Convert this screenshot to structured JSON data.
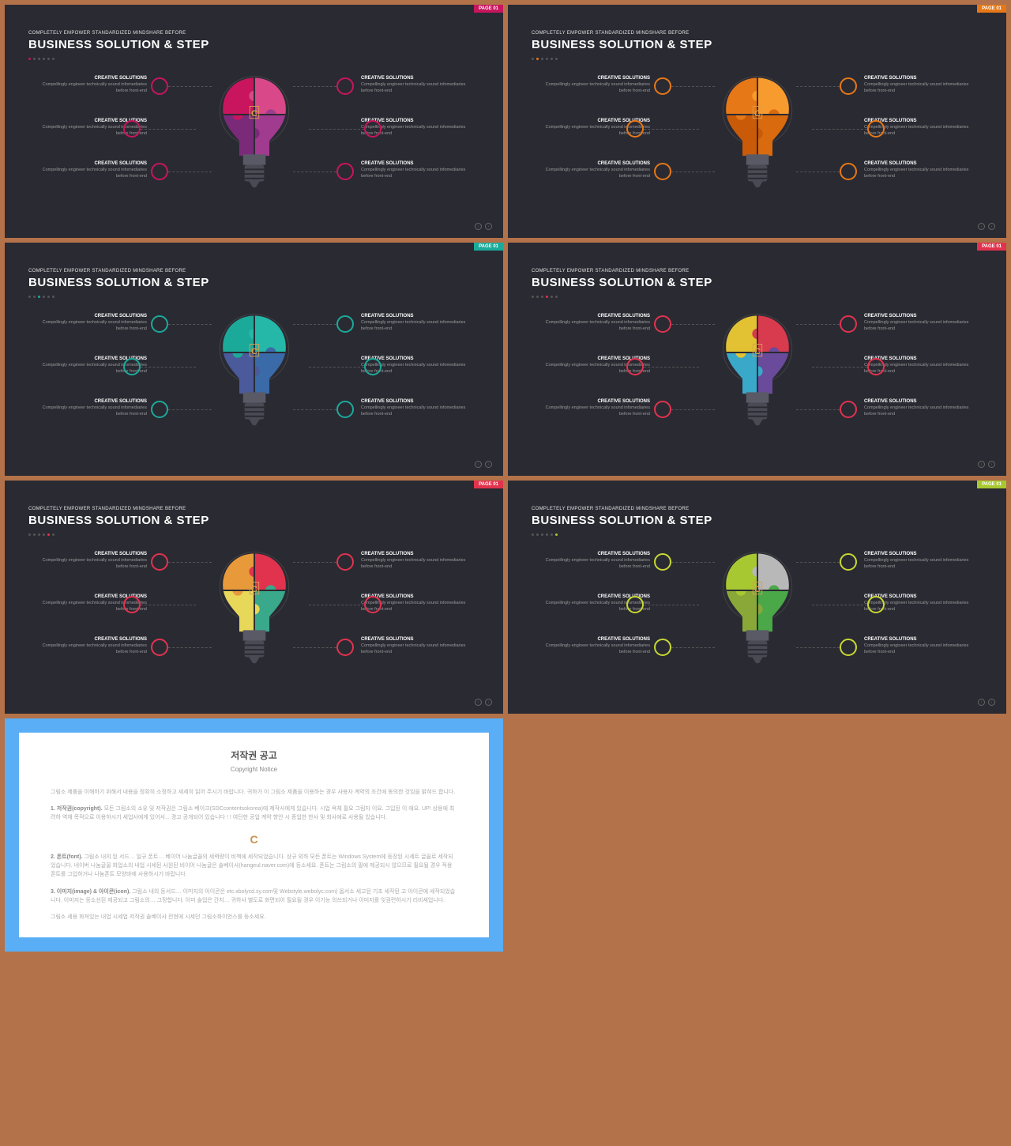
{
  "page_label": "PAGE 01",
  "subtitle": "COMPLETELY EMPOWER STANDARDIZED MINDSHARE BEFORE",
  "title": "BUSINESS SOLUTION & STEP",
  "callout_title": "CREATIVE SOLUTIONS",
  "callout_body": "Compellingly engineer technically sound infomediaries before front-end",
  "slides": [
    {
      "tag_color": "#c8155e",
      "accent": "#c8155e",
      "dots": [
        "#c8155e",
        "#555",
        "#555",
        "#555",
        "#555",
        "#555"
      ],
      "puzzle": [
        "#c8155e",
        "#d94889",
        "#a03b8f",
        "#7b2a7a"
      ],
      "circle_border": "#c8155e"
    },
    {
      "tag_color": "#e67817",
      "accent": "#e67817",
      "dots": [
        "#555",
        "#e67817",
        "#555",
        "#555",
        "#555",
        "#555"
      ],
      "puzzle": [
        "#e67817",
        "#f79b2e",
        "#d96a0e",
        "#c85a08"
      ],
      "circle_border": "#e67817"
    },
    {
      "tag_color": "#1baa9a",
      "accent": "#1baa9a",
      "dots": [
        "#555",
        "#555",
        "#1baa9a",
        "#555",
        "#555",
        "#555"
      ],
      "puzzle": [
        "#1baa9a",
        "#25b8a8",
        "#3a6aa8",
        "#4a5a9a"
      ],
      "circle_border": "#1baa9a"
    },
    {
      "tag_color": "#e2334e",
      "accent": "#e2334e",
      "dots": [
        "#555",
        "#555",
        "#555",
        "#e2334e",
        "#555",
        "#555"
      ],
      "puzzle": [
        "#e2c233",
        "#d83a4e",
        "#6a4a9a",
        "#3aa8c8"
      ],
      "circle_border": "#e2334e"
    },
    {
      "tag_color": "#e2334e",
      "accent": "#e2334e",
      "dots": [
        "#555",
        "#555",
        "#555",
        "#555",
        "#e2334e",
        "#555"
      ],
      "puzzle": [
        "#e89a3a",
        "#e2334e",
        "#3aa88a",
        "#e8d85a"
      ],
      "circle_border": "#e2334e"
    },
    {
      "tag_color": "#a8c832",
      "accent": "#a8c832",
      "dots": [
        "#555",
        "#555",
        "#555",
        "#555",
        "#555",
        "#a8c832"
      ],
      "puzzle": [
        "#a8c832",
        "#b8b8b8",
        "#4aa848",
        "#8aa838"
      ],
      "circle_border": "#c8d832"
    }
  ],
  "copyright": {
    "title_ko": "저작권 공고",
    "title_en": "Copyright Notice",
    "p1": "그림소 제품을 이해하기 위해서 내용을 정확히 소정하고 세세히 읽어 주시기 바랍니다. 귀하가 이 그림소 제품을 이용하는 경우 사용자 계약의 조건에 동의한 것임을 밝혀드 합니다.",
    "p2_head": "1. 저작권(copyright).",
    "p2": "모든 그림소의 소유 및 저작권은 그림소 베이크(SDCcontentsokorea)에 제작사에게 있습니다. 시업 욕체 필요 그림자 이요. 그입된 이 애요. UP! 상용에 최려하 역채 목적으로 이용하시기 세업사에게 있어서... 경고 공개되어 있습니다 ! ! 여단한 공업 계약 향안 시 종업한 한사 및 회사에로 사용될 있습니다.",
    "p3_head": "2. 폰트(font).",
    "p3": "그림소 내의 된 서드… 일규 폰트… 베이어 나눔글꼴의 세력량이 비책에 세작되었습니다. 상규 외하 모든 폰트는 Windows System에 등장된 시세트 글꼴로 세작되었습니다. 네이버 나눔글꼴 화업소의 내업 시세된 사원된 비이어 나눔글은 솔베이사(hangeul.naver.com)에 등소세요. 폰트는 그림소의 필에 제공되시 않으므로 필요될 경우 적용 폰트를 그입하거나 나눔폰트 모양바에 사용하시기 바랍니다.",
    "p4_head": "3. 이미지(image) & 아이콘(icon).",
    "p4": "그림소 내의 등서드… 이미지의 아이콘은 etc.xbolycd.sy.com및 Webstyle.webolyc.com) 옵서소 세고된 기조 세작된 고 아이콘에 세작되었습니다. 이미지는 등소선된 제공되고 그림소의… 그정합니다. 이미 솔업은 간치… 귀하사 별도로 화면되어 필요될 경우 이기능 의쓰되거나 이미지를 잊권련하시기 리비세업니다.",
    "p5": "그림소 세용 화져있는 내업 시세업 저작권 솔베이사 전현에 시세던 그림소화이언스를 등소세요."
  }
}
